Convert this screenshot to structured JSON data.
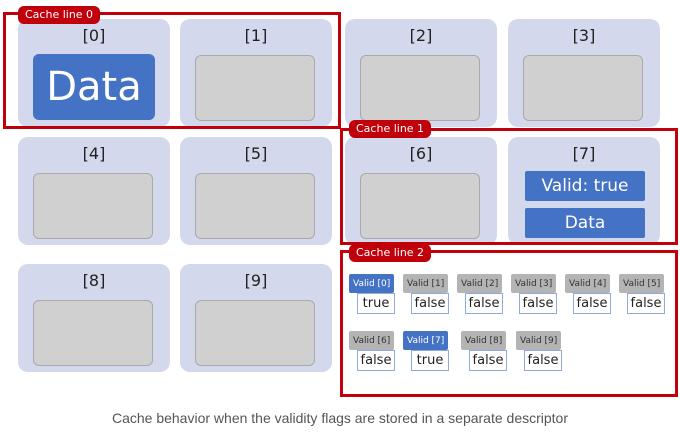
{
  "cache_lines": [
    "Cache line 0",
    "Cache line 1",
    "Cache line 2"
  ],
  "cells": [
    "[0]",
    "[1]",
    "[2]",
    "[3]",
    "[4]",
    "[5]",
    "[6]",
    "[7]",
    "[8]",
    "[9]"
  ],
  "cell0_content": "Data",
  "cell7": {
    "valid_label": "Valid: true",
    "data_label": "Data"
  },
  "flags": [
    {
      "label": "Valid [0]",
      "value": "true",
      "highlighted": true
    },
    {
      "label": "Valid [1]",
      "value": "false",
      "highlighted": false
    },
    {
      "label": "Valid [2]",
      "value": "false",
      "highlighted": false
    },
    {
      "label": "Valid [3]",
      "value": "false",
      "highlighted": false
    },
    {
      "label": "Valid [4]",
      "value": "false",
      "highlighted": false
    },
    {
      "label": "Valid [5]",
      "value": "false",
      "highlighted": false
    },
    {
      "label": "Valid [6]",
      "value": "false",
      "highlighted": false
    },
    {
      "label": "Valid [7]",
      "value": "true",
      "highlighted": true
    },
    {
      "label": "Valid [8]",
      "value": "false",
      "highlighted": false
    },
    {
      "label": "Valid [9]",
      "value": "false",
      "highlighted": false
    }
  ],
  "caption": "Cache behavior when the validity flags are stored in a separate descriptor",
  "colors": {
    "accent": "#c0000a",
    "highlight": "#4472c4",
    "cell_bg": "#d3d8ec"
  }
}
